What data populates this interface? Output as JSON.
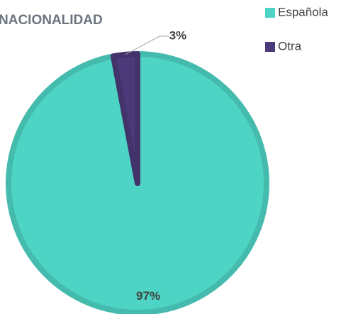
{
  "chart_data": {
    "type": "pie",
    "title": "NACIONALIDAD",
    "categories": [
      "Española",
      "Otra"
    ],
    "values": [
      97,
      3
    ],
    "value_labels": [
      "97%",
      "3%"
    ],
    "colors": [
      "#4dd4c4",
      "#4b3a7a"
    ],
    "legend": "top-right"
  }
}
